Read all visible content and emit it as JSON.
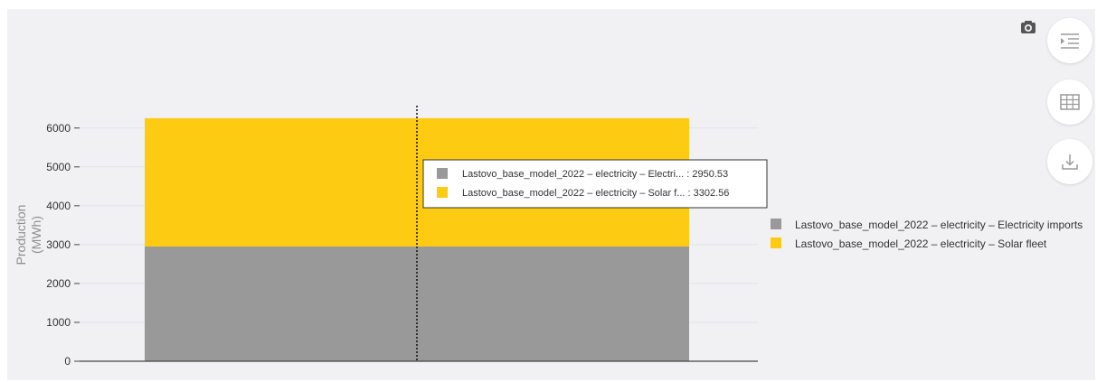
{
  "toolbar": {
    "icons": [
      "camera-icon",
      "legend-list-icon",
      "table-icon",
      "download-icon"
    ]
  },
  "chart_data": {
    "type": "bar",
    "stacked": true,
    "categories": [
      ""
    ],
    "ylabel": "Production (MWh)",
    "ylabel_lines": [
      "Production",
      "(MWh)"
    ],
    "ylim": [
      0,
      6250
    ],
    "yticks": [
      0,
      1000,
      2000,
      3000,
      4000,
      5000,
      6000
    ],
    "ytick_labels": [
      "0",
      "1000",
      "2000",
      "3000",
      "4000",
      "5000",
      "6000"
    ],
    "grid": true,
    "legend_placement": "right",
    "series": [
      {
        "name": "Lastovo_base_model_2022 – electricity – Electricity imports",
        "values": [
          2950.53
        ],
        "color": "#999999"
      },
      {
        "name": "Lastovo_base_model_2022 – electricity – Solar fleet",
        "values": [
          3302.56
        ],
        "color": "#fdcb12"
      }
    ],
    "tooltip": {
      "entries": [
        "Lastovo_base_model_2022 – electricity – Electri... : 2950.53",
        "Lastovo_base_model_2022 – electricity – Solar f... : 3302.56"
      ]
    }
  }
}
